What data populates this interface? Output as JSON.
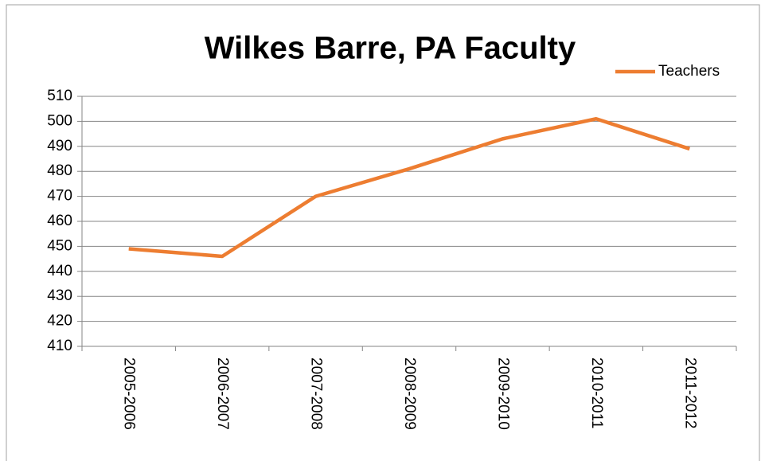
{
  "chart_data": {
    "type": "line",
    "title": "Wilkes Barre, PA Faculty",
    "categories": [
      "2005-2006",
      "2006-2007",
      "2007-2008",
      "2008-2009",
      "2009-2010",
      "2010-2011",
      "2011-2012"
    ],
    "series": [
      {
        "name": "Teachers",
        "color": "#ed7d31",
        "values": [
          449,
          446,
          470,
          481,
          493,
          501,
          489
        ]
      }
    ],
    "ylim": [
      410,
      510
    ],
    "yticks": [
      410,
      420,
      430,
      440,
      450,
      460,
      470,
      480,
      490,
      500,
      510
    ],
    "grid": true,
    "legend": "top-right"
  }
}
